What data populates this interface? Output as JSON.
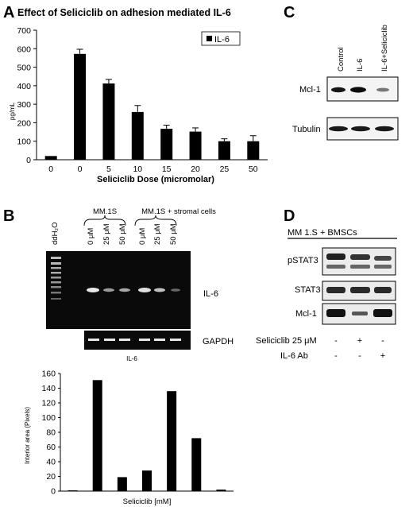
{
  "panel_a": {
    "letter": "A",
    "chart_data": {
      "type": "bar",
      "title": "Effect of Seliciclib on adhesion mediated IL-6",
      "xlabel": "Seliciclib Dose (micromolar)",
      "ylabel": "pg/mL",
      "categories": [
        "0",
        "0",
        "5",
        "10",
        "15",
        "20",
        "25",
        "50"
      ],
      "series": [
        {
          "name": "IL-6",
          "values": [
            20,
            572,
            412,
            258,
            167,
            152,
            100,
            100
          ],
          "errors": [
            0,
            25,
            22,
            35,
            20,
            20,
            13,
            30
          ]
        }
      ],
      "yticks": [
        "0",
        "100",
        "200",
        "300",
        "400",
        "500",
        "600",
        "700"
      ],
      "ylim": [
        0,
        700
      ],
      "legend": "top-right"
    }
  },
  "panel_b": {
    "letter": "B",
    "lane_labels": [
      "ddH₂O",
      "0 μM",
      "25 μM",
      "50 μM",
      "0 μM",
      "25 μM",
      "50 μM"
    ],
    "group_labels": [
      "MM.1S",
      "MM.1S + stromal cells"
    ],
    "band_labels": [
      "IL-6",
      "GAPDH"
    ],
    "caption": "IL-6",
    "chart_data": {
      "type": "bar",
      "xlabel": "Seliciclib [mM]",
      "ylabel": "Interior area (Pixels)",
      "values": [
        1,
        151,
        19,
        28,
        136,
        72,
        2
      ],
      "yticks": [
        "0",
        "20",
        "40",
        "60",
        "80",
        "100",
        "120",
        "140",
        "160"
      ],
      "ylim": [
        0,
        160
      ]
    }
  },
  "panel_c": {
    "letter": "C",
    "lane_labels": [
      "Control",
      "IL-6",
      "IL-6+Seliciclib"
    ],
    "band_labels": [
      "Mcl-1",
      "Tubulin"
    ]
  },
  "panel_d": {
    "letter": "D",
    "header": "MM 1.S + BMSCs",
    "band_labels": [
      "pSTAT3",
      "STAT3",
      "Mcl-1"
    ],
    "conditions": [
      {
        "label": "Seliciclib 25 μM",
        "marks": [
          "-",
          "+",
          "-"
        ]
      },
      {
        "label": "IL-6 Ab",
        "marks": [
          "-",
          "-",
          "+"
        ]
      }
    ]
  },
  "colors": {
    "bar": "#000000",
    "gel_bg": "#0a0a0a",
    "band": "#e8e8e8",
    "blot_band": "#1a1a1a"
  }
}
